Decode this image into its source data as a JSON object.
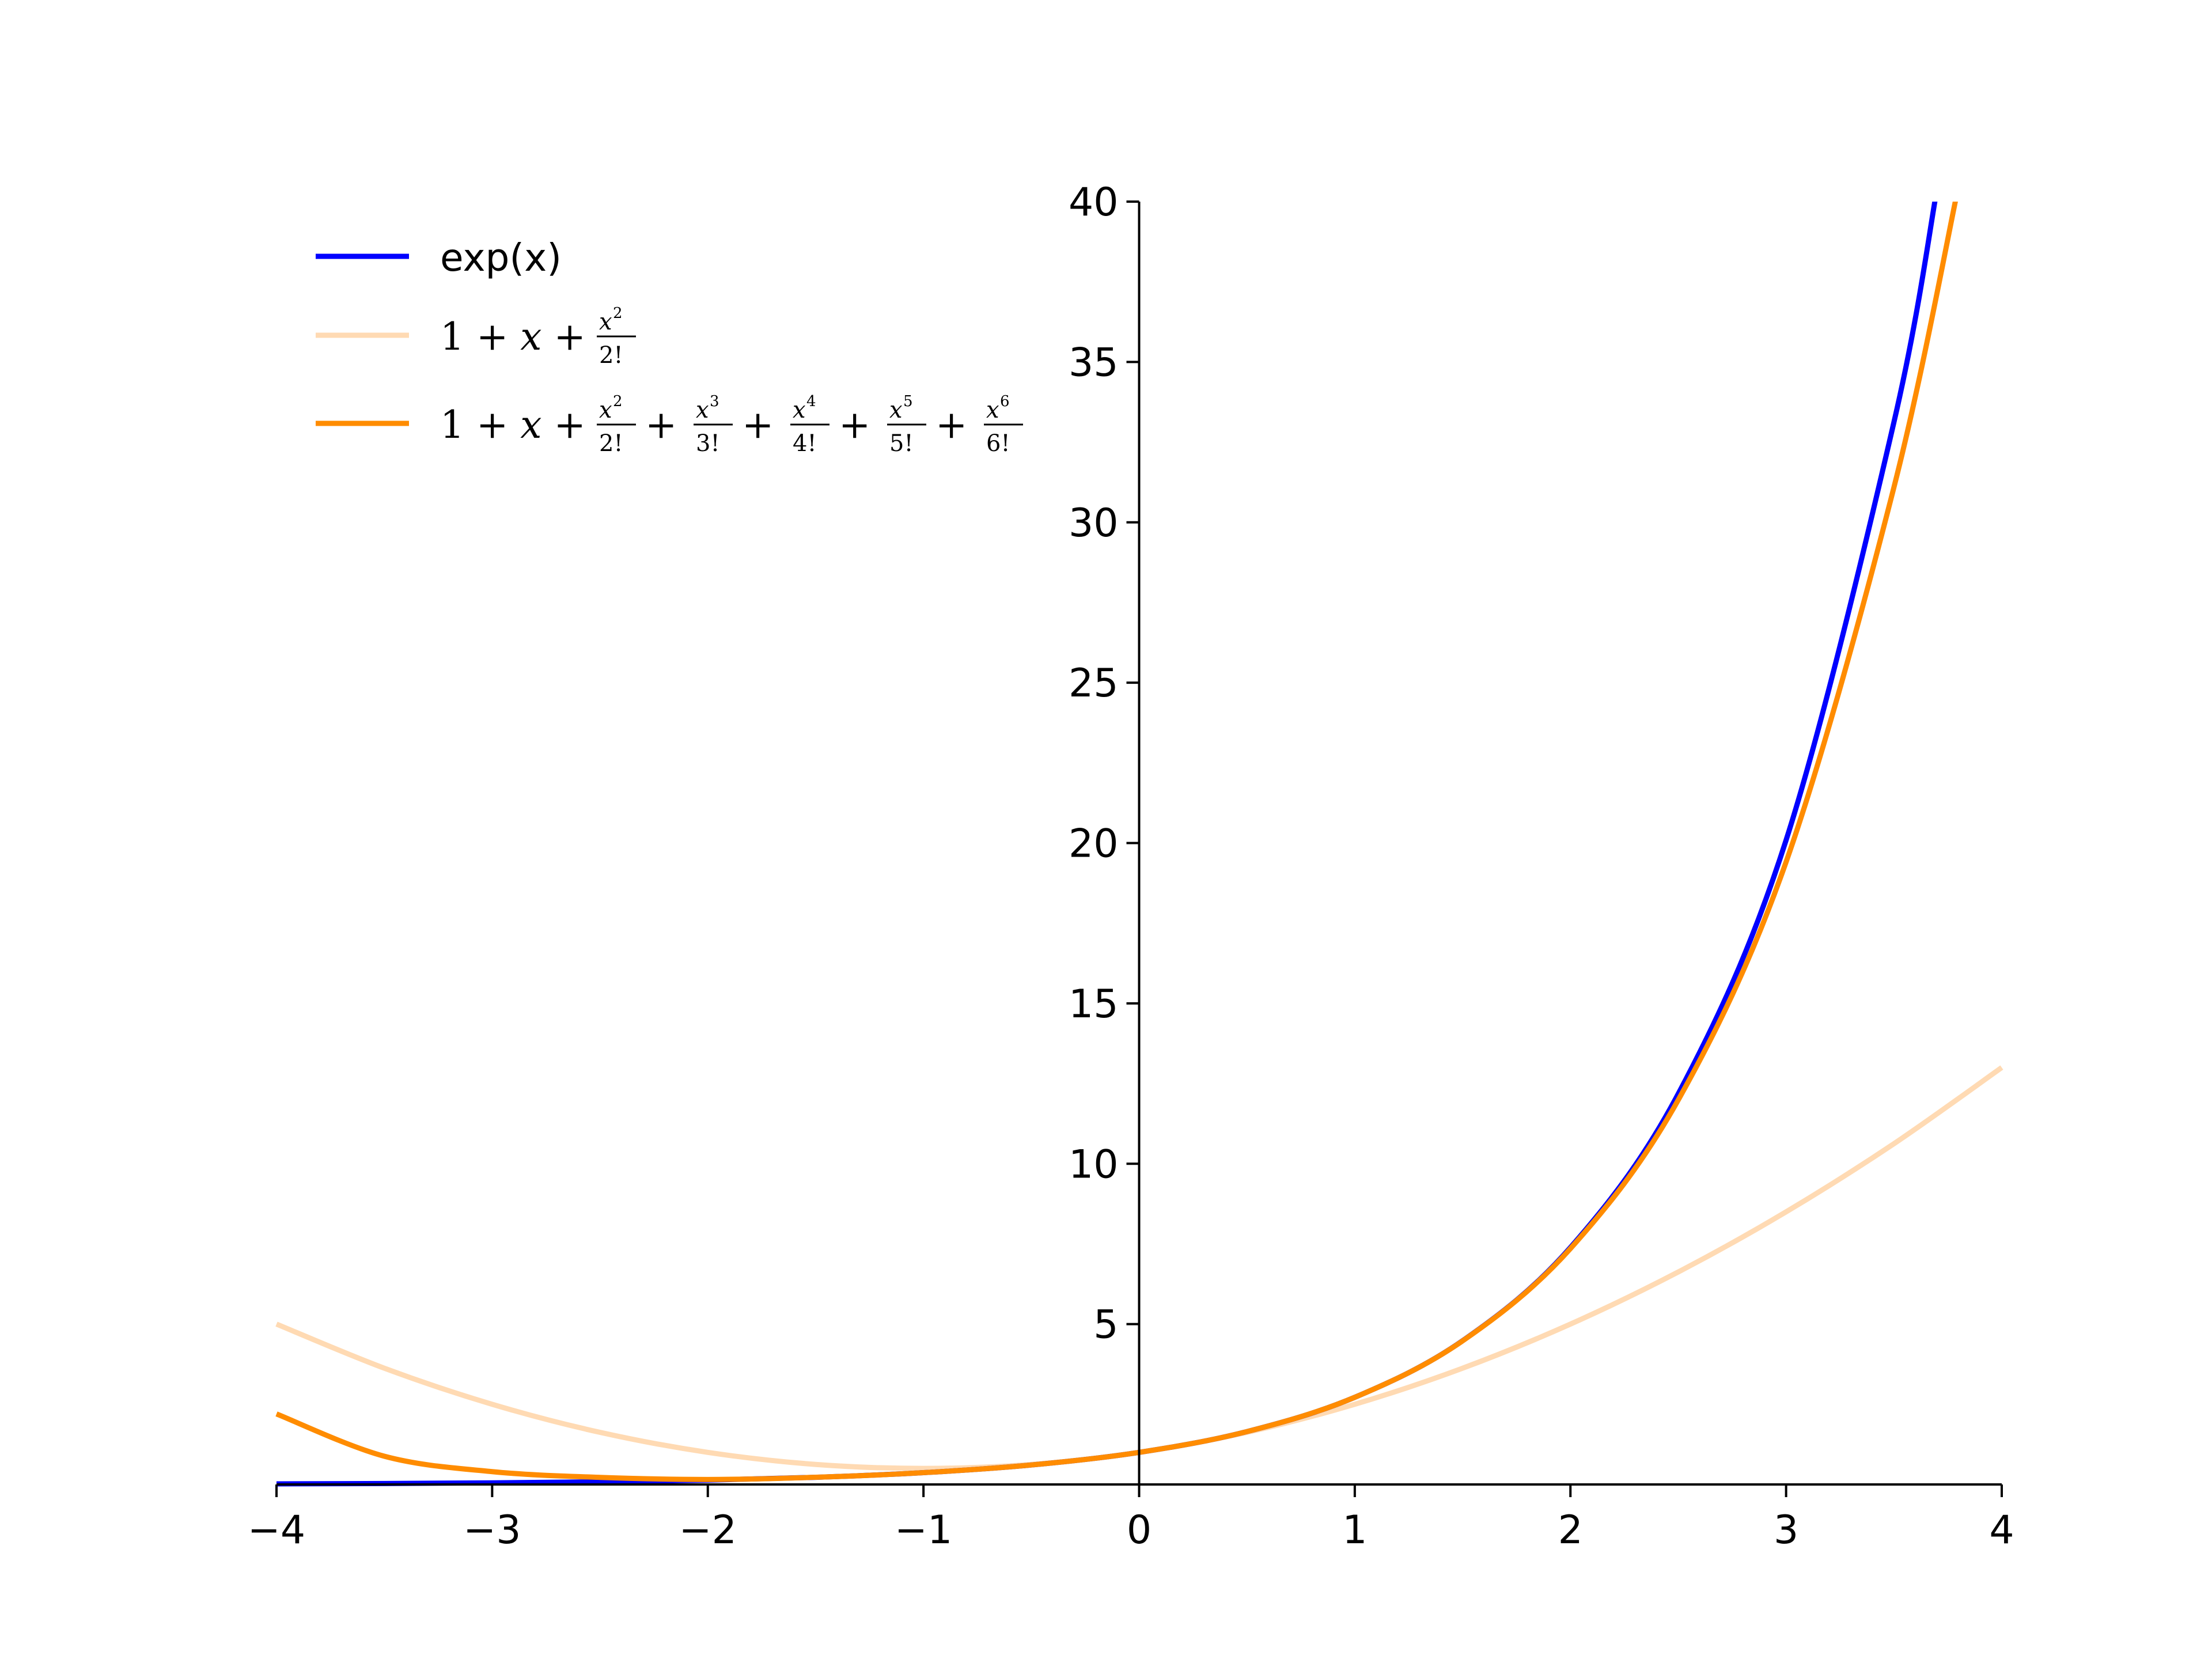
{
  "chart_data": {
    "type": "line",
    "title": "",
    "xlabel": "",
    "ylabel": "",
    "xlim": [
      -4,
      4
    ],
    "ylim": [
      0,
      40
    ],
    "x_ticks": [
      -4,
      -3,
      -2,
      -1,
      0,
      1,
      2,
      3,
      4
    ],
    "x_tick_labels": [
      "−4",
      "−3",
      "−2",
      "−1",
      "0",
      "1",
      "2",
      "3",
      "4"
    ],
    "y_ticks": [
      5,
      10,
      15,
      20,
      25,
      30,
      35,
      40
    ],
    "y_tick_labels": [
      "5",
      "10",
      "15",
      "20",
      "25",
      "30",
      "35",
      "40"
    ],
    "grid": false,
    "legend_position": "top-left",
    "spines": "centered-at-origin",
    "series": [
      {
        "name": "exp(x)",
        "color": "#0000ff",
        "x": [
          -4,
          -3.5,
          -3,
          -2.5,
          -2,
          -1.5,
          -1,
          -0.5,
          0,
          0.5,
          1,
          1.5,
          2,
          2.5,
          3,
          3.5,
          3.7
        ],
        "y": [
          0.018,
          0.03,
          0.05,
          0.082,
          0.135,
          0.223,
          0.368,
          0.607,
          1.0,
          1.649,
          2.718,
          4.482,
          7.389,
          12.18,
          20.09,
          33.12,
          40.4
        ]
      },
      {
        "name": "1+x+x²/2!",
        "color": "#ffdab3",
        "x": [
          -4,
          -3.5,
          -3,
          -2.5,
          -2,
          -1.5,
          -1,
          -0.5,
          0,
          0.5,
          1,
          1.5,
          2,
          2.5,
          3,
          3.5,
          4
        ],
        "y": [
          5.0,
          3.625,
          2.5,
          1.625,
          1.0,
          0.625,
          0.5,
          0.625,
          1.0,
          1.625,
          2.5,
          3.625,
          5.0,
          6.625,
          8.5,
          10.625,
          13.0
        ]
      },
      {
        "name": "1+x+x²/2!+x³/3!+x⁴/4!+x⁵/5!+x⁶/6!",
        "color": "#ff8c00",
        "x": [
          -4,
          -3.5,
          -3,
          -2.5,
          -2,
          -1.5,
          -1,
          -0.5,
          0,
          0.5,
          1,
          1.5,
          2,
          2.5,
          3,
          3.5,
          3.8
        ],
        "y": [
          2.2,
          0.88,
          0.4,
          0.22,
          0.156,
          0.224,
          0.368,
          0.607,
          1.0,
          1.649,
          2.718,
          4.478,
          7.356,
          11.99,
          19.41,
          31.09,
          40.5
        ]
      }
    ]
  },
  "legend": {
    "items": [
      {
        "color": "#0000ff",
        "label": "exp(x)"
      },
      {
        "color": "#ffdab3",
        "label": "1+x+x²/2!"
      },
      {
        "color": "#ff8c00",
        "label": "1+x+x²/2!+x³/3!+x⁴/4!+x⁵/5!+x⁶/6!"
      }
    ]
  }
}
